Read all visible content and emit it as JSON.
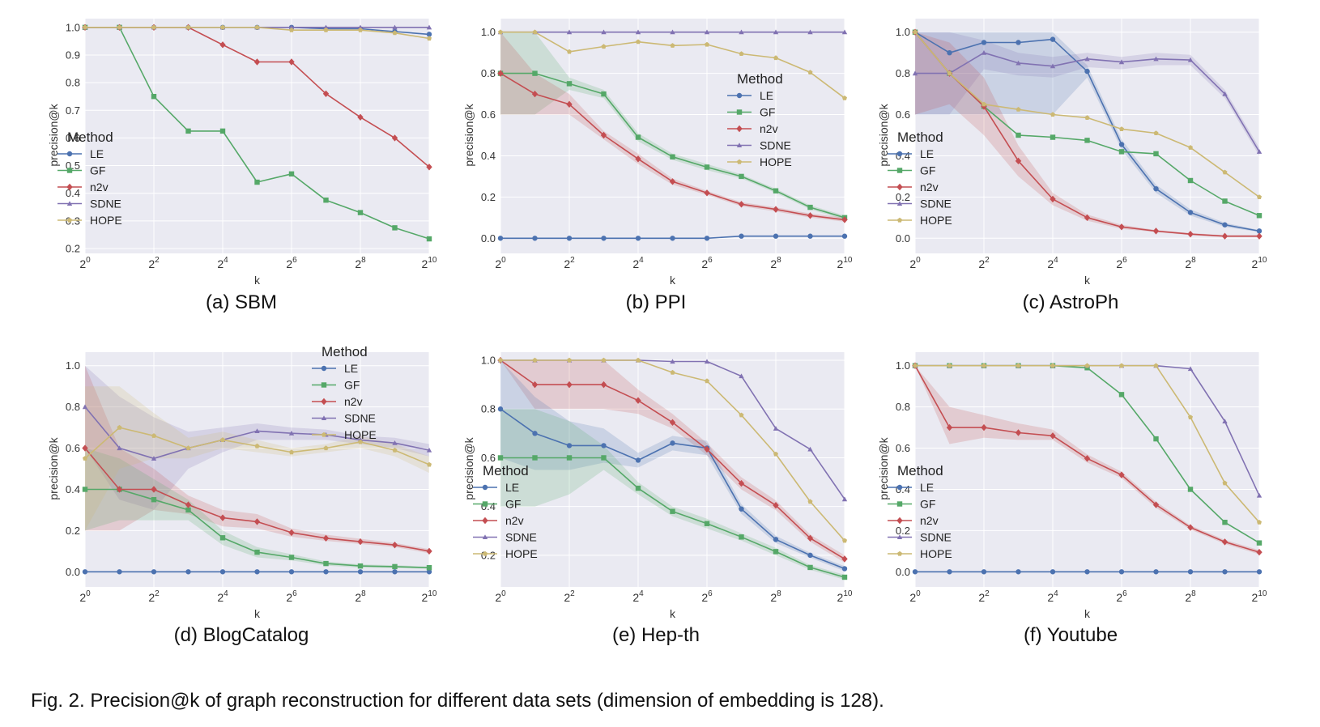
{
  "figure_caption": "Fig. 2. Precision@k of graph reconstruction for different data sets (dimension of embedding is 128).",
  "legend_title": "Method",
  "methods": [
    {
      "key": "LE",
      "label": "LE",
      "color": "#4c72b0",
      "marker": "circle"
    },
    {
      "key": "GF",
      "label": "GF",
      "color": "#55a868",
      "marker": "square"
    },
    {
      "key": "n2v",
      "label": "n2v",
      "color": "#c44e52",
      "marker": "diamond"
    },
    {
      "key": "SDNE",
      "label": "SDNE",
      "color": "#8172b2",
      "marker": "triangle"
    },
    {
      "key": "HOPE",
      "label": "HOPE",
      "color": "#ccb974",
      "marker": "pentagon"
    }
  ],
  "chart_data": [
    {
      "type": "line",
      "caption": "(a) SBM",
      "xlabel": "k",
      "ylabel": "precision@k",
      "x_exponents": [
        0,
        1,
        2,
        3,
        4,
        5,
        6,
        7,
        8,
        9,
        10
      ],
      "x_scale": "log2",
      "xticks": [
        0,
        2,
        4,
        6,
        8,
        10
      ],
      "ylim": [
        0.2,
        1.02
      ],
      "yticks": [
        0.2,
        0.3,
        0.4,
        0.5,
        0.6,
        0.7,
        0.8,
        0.9,
        1.0
      ],
      "ytick_format": 1,
      "legend_position": "lower-left",
      "series": [
        {
          "name": "LE",
          "values": [
            1.0,
            1.0,
            1.0,
            1.0,
            1.0,
            1.0,
            1.0,
            0.995,
            0.995,
            0.985,
            0.975
          ]
        },
        {
          "name": "GF",
          "values": [
            1.0,
            1.0,
            0.75,
            0.625,
            0.625,
            0.44,
            0.47,
            0.375,
            0.33,
            0.275,
            0.235
          ]
        },
        {
          "name": "n2v",
          "values": [
            1.0,
            1.0,
            1.0,
            1.0,
            0.937,
            0.875,
            0.875,
            0.76,
            0.675,
            0.6,
            0.495
          ]
        },
        {
          "name": "SDNE",
          "values": [
            1.0,
            1.0,
            1.0,
            1.0,
            1.0,
            1.0,
            1.0,
            1.0,
            1.0,
            1.0,
            1.0
          ]
        },
        {
          "name": "HOPE",
          "values": [
            1.0,
            1.0,
            1.0,
            1.0,
            1.0,
            1.0,
            0.99,
            0.99,
            0.99,
            0.98,
            0.96
          ]
        }
      ]
    },
    {
      "type": "line",
      "caption": "(b) PPI",
      "xlabel": "k",
      "ylabel": "precision@k",
      "x_exponents": [
        0,
        1,
        2,
        3,
        4,
        5,
        6,
        7,
        8,
        9,
        10
      ],
      "x_scale": "log2",
      "xticks": [
        0,
        2,
        4,
        6,
        8,
        10
      ],
      "ylim": [
        -0.05,
        1.05
      ],
      "yticks": [
        0.0,
        0.2,
        0.4,
        0.6,
        0.8,
        1.0
      ],
      "ytick_format": 1,
      "legend_position": "center-right",
      "series": [
        {
          "name": "LE",
          "values": [
            0.0,
            0.0,
            0.0,
            0.0,
            0.0,
            0.0,
            0.0,
            0.01,
            0.01,
            0.01,
            0.01
          ]
        },
        {
          "name": "GF",
          "values": [
            0.8,
            0.8,
            0.75,
            0.7,
            0.49,
            0.395,
            0.345,
            0.3,
            0.23,
            0.15,
            0.1
          ]
        },
        {
          "name": "n2v",
          "values": [
            0.8,
            0.7,
            0.65,
            0.5,
            0.385,
            0.275,
            0.22,
            0.165,
            0.14,
            0.11,
            0.09
          ]
        },
        {
          "name": "SDNE",
          "values": [
            1.0,
            1.0,
            1.0,
            1.0,
            1.0,
            1.0,
            1.0,
            1.0,
            1.0,
            1.0,
            1.0
          ]
        },
        {
          "name": "HOPE",
          "values": [
            1.0,
            1.0,
            0.905,
            0.93,
            0.953,
            0.935,
            0.94,
            0.895,
            0.875,
            0.805,
            0.68
          ]
        }
      ],
      "bands": [
        {
          "name": "GF",
          "lower": [
            0.6,
            0.6,
            0.72,
            0.68,
            0.47,
            0.38,
            0.33,
            0.29,
            0.22,
            0.14,
            0.09
          ],
          "upper": [
            1.0,
            1.0,
            0.78,
            0.72,
            0.51,
            0.41,
            0.36,
            0.31,
            0.24,
            0.16,
            0.11
          ]
        },
        {
          "name": "n2v",
          "lower": [
            0.6,
            0.6,
            0.6,
            0.48,
            0.36,
            0.26,
            0.21,
            0.155,
            0.13,
            0.1,
            0.08
          ],
          "upper": [
            1.0,
            0.8,
            0.7,
            0.52,
            0.41,
            0.29,
            0.23,
            0.175,
            0.15,
            0.12,
            0.1
          ]
        }
      ]
    },
    {
      "type": "line",
      "caption": "(c) AstroPh",
      "xlabel": "k",
      "ylabel": "precision@k",
      "x_exponents": [
        0,
        1,
        2,
        3,
        4,
        5,
        6,
        7,
        8,
        9,
        10
      ],
      "x_scale": "log2",
      "xticks": [
        0,
        2,
        4,
        6,
        8,
        10
      ],
      "ylim": [
        -0.05,
        1.05
      ],
      "yticks": [
        0.0,
        0.2,
        0.4,
        0.6,
        0.8,
        1.0
      ],
      "ytick_format": 1,
      "legend_position": "lower-left",
      "series": [
        {
          "name": "LE",
          "values": [
            1.0,
            0.9,
            0.95,
            0.95,
            0.965,
            0.81,
            0.455,
            0.24,
            0.125,
            0.065,
            0.035
          ]
        },
        {
          "name": "GF",
          "values": [
            1.0,
            0.8,
            0.64,
            0.5,
            0.49,
            0.475,
            0.42,
            0.41,
            0.28,
            0.18,
            0.11
          ]
        },
        {
          "name": "n2v",
          "values": [
            1.0,
            0.8,
            0.64,
            0.375,
            0.19,
            0.1,
            0.055,
            0.035,
            0.02,
            0.01,
            0.01
          ]
        },
        {
          "name": "SDNE",
          "values": [
            0.8,
            0.8,
            0.9,
            0.85,
            0.835,
            0.87,
            0.855,
            0.87,
            0.865,
            0.7,
            0.42
          ]
        },
        {
          "name": "HOPE",
          "values": [
            1.0,
            0.8,
            0.65,
            0.625,
            0.6,
            0.585,
            0.53,
            0.51,
            0.44,
            0.32,
            0.2
          ]
        }
      ],
      "bands": [
        {
          "name": "LE",
          "lower": [
            0.6,
            0.6,
            0.6,
            0.6,
            0.6,
            0.78,
            0.43,
            0.22,
            0.11,
            0.055,
            0.03
          ],
          "upper": [
            1.0,
            1.0,
            1.0,
            1.0,
            1.0,
            0.84,
            0.48,
            0.26,
            0.14,
            0.075,
            0.04
          ]
        },
        {
          "name": "SDNE",
          "lower": [
            0.6,
            0.6,
            0.82,
            0.79,
            0.78,
            0.83,
            0.82,
            0.84,
            0.84,
            0.68,
            0.4
          ],
          "upper": [
            1.0,
            1.0,
            0.96,
            0.9,
            0.88,
            0.9,
            0.88,
            0.9,
            0.89,
            0.72,
            0.44
          ]
        },
        {
          "name": "n2v",
          "lower": [
            0.6,
            0.65,
            0.5,
            0.3,
            0.16,
            0.085,
            0.045,
            0.03,
            0.015,
            0.005,
            0.005
          ],
          "upper": [
            1.0,
            0.95,
            0.78,
            0.45,
            0.22,
            0.115,
            0.065,
            0.04,
            0.025,
            0.015,
            0.015
          ]
        }
      ]
    },
    {
      "type": "line",
      "caption": "(d) BlogCatalog",
      "xlabel": "k",
      "ylabel": "precision@k",
      "x_exponents": [
        0,
        1,
        2,
        3,
        4,
        5,
        6,
        7,
        8,
        9,
        10
      ],
      "x_scale": "log2",
      "xticks": [
        0,
        2,
        4,
        6,
        8,
        10
      ],
      "ylim": [
        -0.05,
        1.05
      ],
      "yticks": [
        0.0,
        0.2,
        0.4,
        0.6,
        0.8,
        1.0
      ],
      "ytick_format": 1,
      "legend_position": "upper-right",
      "series": [
        {
          "name": "LE",
          "values": [
            0.0,
            0.0,
            0.0,
            0.0,
            0.0,
            0.0,
            0.0,
            0.0,
            0.0,
            0.0,
            0.0
          ]
        },
        {
          "name": "GF",
          "values": [
            0.4,
            0.4,
            0.35,
            0.3,
            0.165,
            0.095,
            0.07,
            0.04,
            0.028,
            0.025,
            0.02
          ]
        },
        {
          "name": "n2v",
          "values": [
            0.6,
            0.4,
            0.4,
            0.325,
            0.262,
            0.243,
            0.19,
            0.163,
            0.146,
            0.13,
            0.1
          ]
        },
        {
          "name": "SDNE",
          "values": [
            0.8,
            0.6,
            0.55,
            0.6,
            0.64,
            0.683,
            0.672,
            0.665,
            0.64,
            0.625,
            0.59
          ]
        },
        {
          "name": "HOPE",
          "values": [
            0.55,
            0.7,
            0.66,
            0.6,
            0.64,
            0.61,
            0.58,
            0.6,
            0.63,
            0.59,
            0.52
          ]
        }
      ],
      "bands": [
        {
          "name": "SDNE",
          "lower": [
            0.6,
            0.35,
            0.3,
            0.5,
            0.58,
            0.64,
            0.64,
            0.64,
            0.62,
            0.6,
            0.56
          ],
          "upper": [
            1.0,
            0.85,
            0.75,
            0.68,
            0.7,
            0.72,
            0.7,
            0.69,
            0.66,
            0.65,
            0.62
          ]
        },
        {
          "name": "n2v",
          "lower": [
            0.2,
            0.2,
            0.3,
            0.28,
            0.22,
            0.21,
            0.17,
            0.15,
            0.135,
            0.12,
            0.09
          ],
          "upper": [
            1.0,
            0.6,
            0.5,
            0.37,
            0.3,
            0.28,
            0.21,
            0.18,
            0.16,
            0.14,
            0.11
          ]
        },
        {
          "name": "GF",
          "lower": [
            0.2,
            0.25,
            0.25,
            0.25,
            0.13,
            0.07,
            0.055,
            0.03,
            0.02,
            0.018,
            0.015
          ],
          "upper": [
            0.6,
            0.55,
            0.45,
            0.35,
            0.2,
            0.12,
            0.085,
            0.05,
            0.036,
            0.032,
            0.025
          ]
        },
        {
          "name": "HOPE",
          "lower": [
            0.2,
            0.5,
            0.55,
            0.55,
            0.6,
            0.58,
            0.56,
            0.58,
            0.6,
            0.56,
            0.48
          ],
          "upper": [
            0.9,
            0.9,
            0.77,
            0.65,
            0.68,
            0.64,
            0.6,
            0.62,
            0.66,
            0.62,
            0.56
          ]
        }
      ]
    },
    {
      "type": "line",
      "caption": "(e) Hep-th",
      "xlabel": "k",
      "ylabel": "precision@k",
      "x_exponents": [
        0,
        1,
        2,
        3,
        4,
        5,
        6,
        7,
        8,
        9,
        10
      ],
      "x_scale": "log2",
      "xticks": [
        0,
        2,
        4,
        6,
        8,
        10
      ],
      "ylim": [
        0.09,
        1.02
      ],
      "yticks": [
        0.2,
        0.4,
        0.6,
        0.8,
        1.0
      ],
      "ytick_format": 1,
      "legend_position": "lower-left",
      "series": [
        {
          "name": "LE",
          "values": [
            0.8,
            0.7,
            0.65,
            0.65,
            0.59,
            0.66,
            0.64,
            0.39,
            0.265,
            0.2,
            0.145
          ]
        },
        {
          "name": "GF",
          "values": [
            0.6,
            0.6,
            0.6,
            0.6,
            0.475,
            0.38,
            0.33,
            0.275,
            0.215,
            0.15,
            0.11
          ]
        },
        {
          "name": "n2v",
          "values": [
            1.0,
            0.9,
            0.9,
            0.9,
            0.835,
            0.745,
            0.635,
            0.495,
            0.405,
            0.27,
            0.185
          ]
        },
        {
          "name": "SDNE",
          "values": [
            1.0,
            1.0,
            1.0,
            1.0,
            1.0,
            0.995,
            0.995,
            0.935,
            0.72,
            0.635,
            0.43
          ]
        },
        {
          "name": "HOPE",
          "values": [
            1.0,
            1.0,
            1.0,
            1.0,
            1.0,
            0.95,
            0.915,
            0.775,
            0.615,
            0.42,
            0.26
          ]
        }
      ],
      "bands": [
        {
          "name": "n2v",
          "lower": [
            1.0,
            0.8,
            0.8,
            0.8,
            0.78,
            0.72,
            0.61,
            0.47,
            0.385,
            0.255,
            0.17
          ],
          "upper": [
            1.0,
            1.0,
            1.0,
            1.0,
            0.88,
            0.78,
            0.66,
            0.52,
            0.425,
            0.285,
            0.2
          ]
        },
        {
          "name": "LE",
          "lower": [
            0.6,
            0.55,
            0.55,
            0.58,
            0.56,
            0.63,
            0.61,
            0.37,
            0.25,
            0.19,
            0.135
          ],
          "upper": [
            1.0,
            0.85,
            0.75,
            0.72,
            0.62,
            0.69,
            0.67,
            0.41,
            0.28,
            0.21,
            0.155
          ]
        },
        {
          "name": "GF",
          "lower": [
            0.4,
            0.4,
            0.45,
            0.55,
            0.45,
            0.36,
            0.31,
            0.26,
            0.2,
            0.14,
            0.1
          ],
          "upper": [
            0.8,
            0.8,
            0.75,
            0.65,
            0.5,
            0.4,
            0.35,
            0.29,
            0.23,
            0.16,
            0.12
          ]
        }
      ]
    },
    {
      "type": "line",
      "caption": "(f) Youtube",
      "xlabel": "k",
      "ylabel": "precision@k",
      "x_exponents": [
        0,
        1,
        2,
        3,
        4,
        5,
        6,
        7,
        8,
        9,
        10
      ],
      "x_scale": "log2",
      "xticks": [
        0,
        2,
        4,
        6,
        8,
        10
      ],
      "ylim": [
        -0.05,
        1.05
      ],
      "yticks": [
        0.0,
        0.2,
        0.4,
        0.6,
        0.8,
        1.0
      ],
      "ytick_format": 1,
      "legend_position": "lower-left",
      "series": [
        {
          "name": "LE",
          "values": [
            0.0,
            0.0,
            0.0,
            0.0,
            0.0,
            0.0,
            0.0,
            0.0,
            0.0,
            0.0,
            0.0
          ]
        },
        {
          "name": "GF",
          "values": [
            1.0,
            1.0,
            1.0,
            1.0,
            1.0,
            0.99,
            0.86,
            0.645,
            0.4,
            0.24,
            0.14
          ]
        },
        {
          "name": "n2v",
          "values": [
            1.0,
            0.7,
            0.7,
            0.675,
            0.66,
            0.55,
            0.47,
            0.325,
            0.215,
            0.145,
            0.095
          ]
        },
        {
          "name": "SDNE",
          "values": [
            1.0,
            1.0,
            1.0,
            1.0,
            1.0,
            1.0,
            1.0,
            1.0,
            0.985,
            0.73,
            0.37
          ]
        },
        {
          "name": "HOPE",
          "values": [
            1.0,
            1.0,
            1.0,
            1.0,
            1.0,
            1.0,
            1.0,
            1.0,
            0.75,
            0.43,
            0.24
          ]
        }
      ],
      "bands": [
        {
          "name": "n2v",
          "lower": [
            1.0,
            0.62,
            0.65,
            0.64,
            0.64,
            0.53,
            0.455,
            0.31,
            0.205,
            0.135,
            0.085
          ],
          "upper": [
            1.0,
            0.8,
            0.76,
            0.72,
            0.69,
            0.57,
            0.485,
            0.34,
            0.225,
            0.155,
            0.105
          ]
        }
      ]
    }
  ]
}
